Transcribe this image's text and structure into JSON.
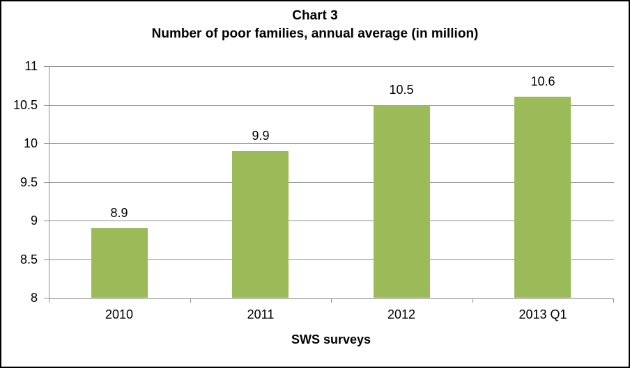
{
  "chart_data": {
    "type": "bar",
    "title": "Chart 3",
    "subtitle": "Number of poor families, annual average (in million)",
    "xlabel": "SWS surveys",
    "ylabel": "",
    "categories": [
      "2010",
      "2011",
      "2012",
      "2013 Q1"
    ],
    "values": [
      8.9,
      9.9,
      10.5,
      10.6
    ],
    "bar_labels": [
      "8.9",
      "9.9",
      "10.5",
      "10.6"
    ],
    "ylim": [
      8,
      11
    ],
    "yticks": [
      8,
      8.5,
      9,
      9.5,
      10,
      10.5,
      11
    ],
    "ytick_labels": [
      "8",
      "8.5",
      "9",
      "9.5",
      "10",
      "10.5",
      "11"
    ],
    "grid": true,
    "legend": "none",
    "colors": {
      "bar": "#9BBB59",
      "axis": "#8C8C8C",
      "grid": "#8C8C8C",
      "text": "#000000",
      "background": "#FFFFFF",
      "frame_border": "#000000"
    }
  }
}
